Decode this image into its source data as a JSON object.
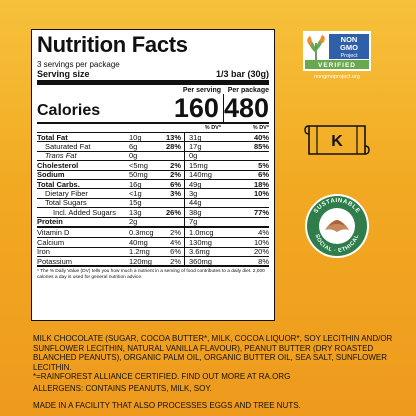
{
  "panel": {
    "title": "Nutrition Facts",
    "servings": "3 servings per package",
    "serving_size_label": "Serving size",
    "serving_size_value": "1/3 bar (30g)",
    "per_serving_label": "Per serving",
    "per_package_label": "Per package",
    "calories_label": "Calories",
    "calories_serving": "160",
    "calories_package": "480",
    "dv_label": "% DV*",
    "rows": [
      {
        "name": "Total Fat",
        "q1": "10g",
        "p1": "13%",
        "q2": "31g",
        "p2": "40%",
        "bold": true
      },
      {
        "name": "Saturated Fat",
        "q1": "6g",
        "p1": "28%",
        "q2": "17g",
        "p2": "85%",
        "indent": 1
      },
      {
        "name": "Trans Fat",
        "q1": "0g",
        "p1": "",
        "q2": "0g",
        "p2": "",
        "indent": 1
      },
      {
        "name": "Cholesterol",
        "q1": "<5mg",
        "p1": "2%",
        "q2": "15mg",
        "p2": "5%",
        "bold": true
      },
      {
        "name": "Sodium",
        "q1": "50mg",
        "p1": "2%",
        "q2": "140mg",
        "p2": "6%",
        "bold": true
      },
      {
        "name": "Total Carbs.",
        "q1": "16g",
        "p1": "6%",
        "q2": "49g",
        "p2": "18%",
        "bold": true
      },
      {
        "name": "Dietary Fiber",
        "q1": "<1g",
        "p1": "3%",
        "q2": "3g",
        "p2": "10%",
        "indent": 1
      },
      {
        "name": "Total Sugars",
        "q1": "15g",
        "p1": "",
        "q2": "44g",
        "p2": "",
        "indent": 1
      },
      {
        "name": "Incl. Added Sugars",
        "q1": "13g",
        "p1": "26%",
        "q2": "38g",
        "p2": "77%",
        "indent": 2
      },
      {
        "name": "Protein",
        "q1": "2g",
        "p1": "",
        "q2": "7g",
        "p2": "",
        "bold": true
      }
    ],
    "vitamins": [
      {
        "name": "Vitamin D",
        "q1": "0.3mcg",
        "p1": "2%",
        "q2": "1.0mcg",
        "p2": "4%"
      },
      {
        "name": "Calcium",
        "q1": "40mg",
        "p1": "4%",
        "q2": "130mg",
        "p2": "10%"
      },
      {
        "name": "Iron",
        "q1": "1.2mg",
        "p1": "6%",
        "q2": "3.6mg",
        "p2": "20%"
      },
      {
        "name": "Potassium",
        "q1": "120mg",
        "p1": "2%",
        "q2": "360mg",
        "p2": "8%"
      }
    ],
    "footnote": "* The % Daily Value (DV) tells you how much a nutrient in a serving of food contributes to a daily diet. 2,000 calories a day is used for general nutrition advice."
  },
  "ingredients": "MILK CHOCOLATE (SUGAR, COCOA BUTTER*, MILK, COCOA LIQUOR*, SOY LECITHIN AND/OR SUNFLOWER LECITHIN, NATURAL VANILLA FLAVOUR), PEANUT BUTTER (DRY ROASTED BLANCHED PEANUTS), ORGANIC PALM OIL, ORGANIC BUTTER OIL, SEA SALT, SUNFLOWER LECITHIN.",
  "rainforest_note": "*=RAINFOREST ALLIANCE CERTIFIED. FIND OUT MORE AT RA.ORG",
  "allergens": "ALLERGENS: CONTAINS PEANUTS, MILK, SOY.",
  "facility": "MADE IN A FACILITY THAT ALSO PROCESSES EGGS AND TREE NUTS.",
  "badges": {
    "nongmo_line1": "NON",
    "nongmo_line2": "GMO",
    "nongmo_line3": "Project",
    "nongmo_verified": "VERIFIED",
    "nongmo_url": "nongmoproject.org",
    "kosher": "K",
    "rainforest_top": "SUSTAINABLE",
    "rainforest_bottom": "SOCIAL · ETHICAL"
  },
  "colors": {
    "nongmo_blue": "#2f5fa8",
    "nongmo_green": "#6aa84f",
    "rainforest_green": "#2e7d4a"
  }
}
